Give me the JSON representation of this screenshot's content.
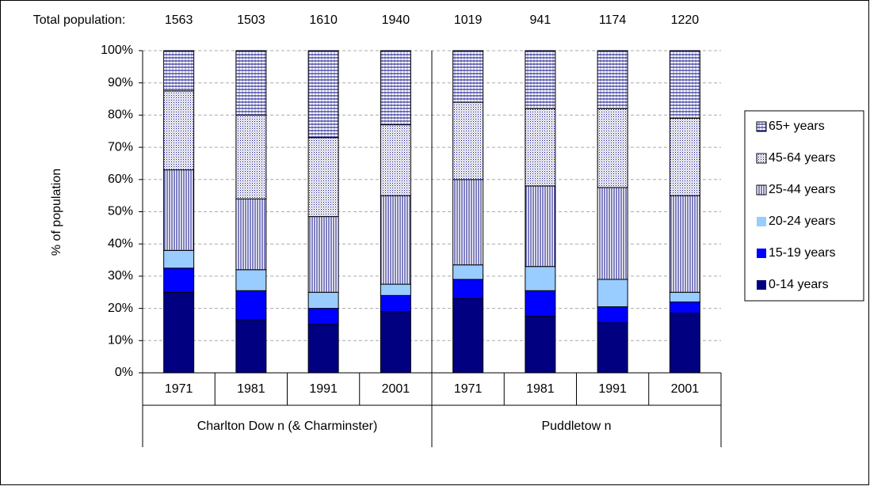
{
  "chart_data": {
    "type": "stacked_bar_100",
    "total_population_label": "Total population:",
    "total_population": [
      1563,
      1503,
      1610,
      1940,
      1019,
      941,
      1174,
      1220
    ],
    "y_label": "% of population",
    "categories": [
      "1971",
      "1981",
      "1991",
      "2001",
      "1971",
      "1981",
      "1991",
      "2001"
    ],
    "groups": [
      "Charlton Dow n (& Charminster)",
      "Puddletow n"
    ],
    "series": [
      {
        "name": "0-14 years",
        "color": "#000080",
        "values": [
          25,
          16.5,
          15,
          19,
          23,
          17.5,
          15.5,
          18.5
        ]
      },
      {
        "name": "15-19 years",
        "color": "#0000ff",
        "values": [
          7.5,
          9,
          5,
          5,
          6,
          8,
          5,
          3.5
        ]
      },
      {
        "name": "20-24 years",
        "color": "#99ccff",
        "values": [
          5.5,
          6.5,
          5,
          3.5,
          4.5,
          7.5,
          8.5,
          3
        ]
      },
      {
        "name": "25-44 years",
        "color": "#000080",
        "pattern": "vertical",
        "values": [
          25,
          22,
          23.5,
          27.5,
          26.5,
          25,
          28.5,
          30
        ]
      },
      {
        "name": "45-64 years",
        "color": "#000080",
        "pattern": "dots",
        "values": [
          24.5,
          26,
          24.5,
          22,
          24,
          24,
          24.5,
          24
        ]
      },
      {
        "name": "65+ years",
        "color": "#000080",
        "pattern": "horizontal",
        "values": [
          12.5,
          20,
          27,
          23,
          16,
          18,
          18,
          21
        ]
      }
    ],
    "ylim": [
      0,
      100
    ],
    "yticks": [
      {
        "value": 0,
        "label": "0%"
      },
      {
        "value": 10,
        "label": "10%"
      },
      {
        "value": 20,
        "label": "20%"
      },
      {
        "value": 30,
        "label": "30%"
      },
      {
        "value": 40,
        "label": "40%"
      },
      {
        "value": 50,
        "label": "50%"
      },
      {
        "value": 60,
        "label": "60%"
      },
      {
        "value": 70,
        "label": "70%"
      },
      {
        "value": 80,
        "label": "80%"
      },
      {
        "value": 90,
        "label": "90%"
      },
      {
        "value": 100,
        "label": "100%"
      }
    ],
    "grid": true,
    "legend": "right"
  }
}
